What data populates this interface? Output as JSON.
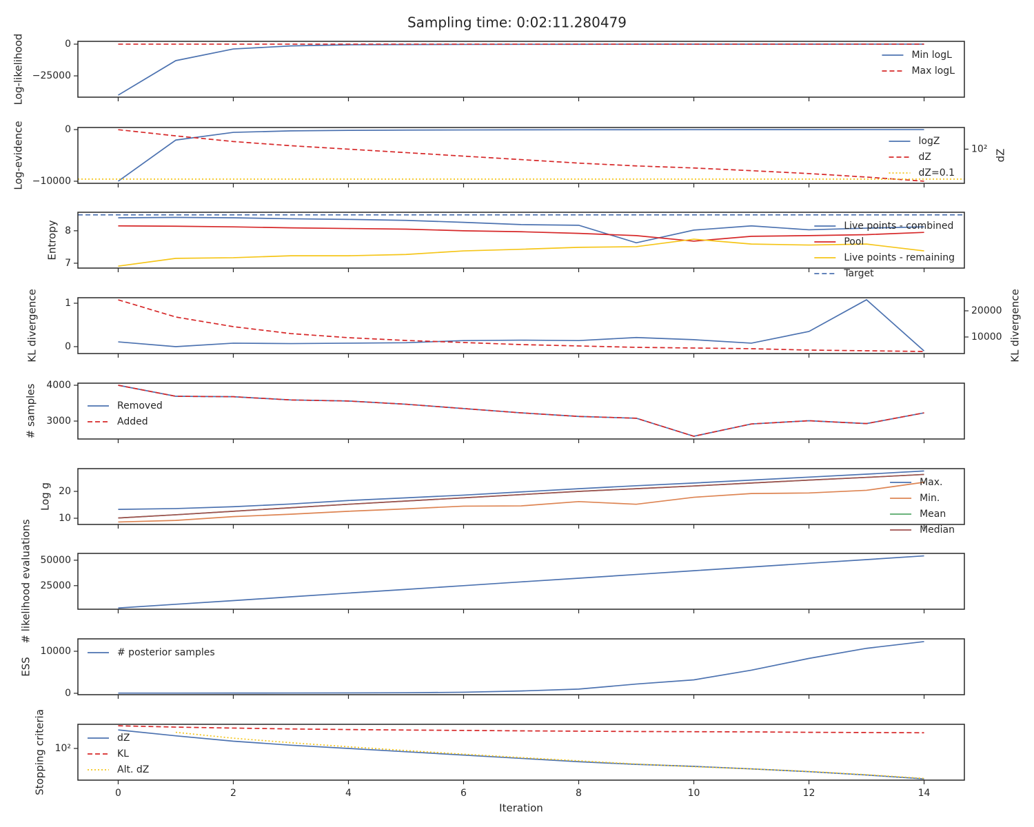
{
  "title": "Sampling time: 0:02:11.280479",
  "chart_data": [
    {
      "type": "line",
      "ylabel": "Log-likelihood",
      "x": [
        0,
        1,
        2,
        3,
        4,
        5,
        6,
        7,
        8,
        9,
        10,
        11,
        12,
        13,
        14
      ],
      "ylim": [
        -41800,
        2200
      ],
      "yticks": [
        {
          "value": -25000,
          "label": "−25000"
        },
        0
      ],
      "legend": "upper right",
      "series": [
        {
          "name": "Min logL",
          "color": "#4c72b0",
          "style": "solid",
          "values": [
            -40200,
            -13000,
            -3800,
            -1400,
            -500,
            -300,
            -200,
            -150,
            -100,
            -60,
            -40,
            -30,
            -20,
            -10,
            -5
          ]
        },
        {
          "name": "Max logL",
          "color": "#d62728",
          "style": "dashed",
          "values": [
            0,
            0,
            0,
            0,
            0,
            0,
            0,
            0,
            0,
            0,
            0,
            0,
            0,
            0,
            0
          ]
        }
      ]
    },
    {
      "type": "line",
      "ylabel": "Log-evidence",
      "y2label": "dZ",
      "x": [
        0,
        1,
        2,
        3,
        4,
        5,
        6,
        7,
        8,
        9,
        10,
        11,
        12,
        13,
        14
      ],
      "ylim": [
        -10405,
        405
      ],
      "yticks": [
        {
          "value": -10000,
          "label": "−10000"
        },
        0
      ],
      "y2log": true,
      "y2lim": [
        0.038,
        14700
      ],
      "y2ticks": [
        {
          "value": 100,
          "label": "10²"
        }
      ],
      "legend": "upper right",
      "series": [
        {
          "name": "logZ",
          "color": "#4c72b0",
          "style": "solid",
          "values": [
            -10000,
            -2030,
            -540,
            -250,
            -150,
            -100,
            -70,
            -50,
            -35,
            -25,
            -18,
            -12,
            -8,
            -5,
            -3
          ]
        },
        {
          "name": "dZ",
          "color": "#d62728",
          "style": "dashed",
          "axis": "y2",
          "values": [
            8900,
            2130,
            580,
            220,
            100,
            45,
            20,
            9,
            4,
            2.1,
            1.3,
            0.7,
            0.36,
            0.16,
            0.062
          ]
        }
      ],
      "hlines": [
        {
          "name": "dZ=0.1",
          "value": 0.1,
          "axis": "y2",
          "color": "#f5c518",
          "style": "dotted"
        }
      ]
    },
    {
      "type": "line",
      "ylabel": "Entropy",
      "x": [
        0,
        1,
        2,
        3,
        4,
        5,
        6,
        7,
        8,
        9,
        10,
        11,
        12,
        13,
        14
      ],
      "ylim": [
        6.85,
        8.57
      ],
      "yticks": [
        7,
        8
      ],
      "legend": "upper right",
      "series": [
        {
          "name": "Live points - combined",
          "color": "#4c72b0",
          "style": "solid",
          "values": [
            8.4,
            8.41,
            8.4,
            8.37,
            8.35,
            8.32,
            8.26,
            8.19,
            8.17,
            7.63,
            8.02,
            8.15,
            8.03,
            8.08,
            8.12
          ]
        },
        {
          "name": "Pool",
          "color": "#d62728",
          "style": "solid",
          "values": [
            8.15,
            8.14,
            8.12,
            8.09,
            8.07,
            8.05,
            8.0,
            7.97,
            7.92,
            7.85,
            7.68,
            7.83,
            7.85,
            7.88,
            7.95
          ]
        },
        {
          "name": "Live points - remaining",
          "color": "#f5c518",
          "style": "solid",
          "values": [
            6.91,
            7.15,
            7.17,
            7.23,
            7.23,
            7.27,
            7.38,
            7.43,
            7.49,
            7.51,
            7.74,
            7.59,
            7.56,
            7.59,
            7.38
          ]
        }
      ],
      "hlines": [
        {
          "name": "Target",
          "value": 8.49,
          "color": "#4c72b0",
          "style": "dashed"
        }
      ]
    },
    {
      "type": "line",
      "ylabel": "KL divergence",
      "y2label": "KL divergence",
      "x": [
        0,
        1,
        2,
        3,
        4,
        5,
        6,
        7,
        8,
        9,
        10,
        11,
        12,
        13,
        14
      ],
      "ylim": [
        -0.159,
        1.127
      ],
      "yticks": [
        0,
        1
      ],
      "y2lim": [
        3680,
        25000
      ],
      "y2ticks": [
        10000,
        20000
      ],
      "series": [
        {
          "color": "#4c72b0",
          "style": "solid",
          "values": [
            0.11,
            0,
            0.08,
            0.07,
            0.08,
            0.09,
            0.14,
            0.15,
            0.14,
            0.21,
            0.16,
            0.08,
            0.35,
            1.08,
            -0.1
          ]
        },
        {
          "color": "#d62728",
          "style": "dashed",
          "axis": "y2",
          "values": [
            24200,
            17630,
            13950,
            11300,
            9740,
            8680,
            7900,
            7100,
            6580,
            6050,
            5790,
            5530,
            5000,
            4740,
            4470
          ]
        }
      ]
    },
    {
      "type": "line",
      "ylabel": "# samples",
      "x": [
        0,
        1,
        2,
        3,
        4,
        5,
        6,
        7,
        8,
        9,
        10,
        11,
        12,
        13,
        14
      ],
      "ylim": [
        2500,
        4058
      ],
      "yticks": [
        3000,
        4000
      ],
      "legend": "center left",
      "series": [
        {
          "name": "Removed",
          "color": "#4c72b0",
          "style": "solid",
          "values": [
            4000,
            3692,
            3680,
            3590,
            3560,
            3470,
            3350,
            3230,
            3130,
            3080,
            2577,
            2920,
            3010,
            2930,
            3230
          ]
        },
        {
          "name": "Added",
          "color": "#d62728",
          "style": "dashed",
          "values": [
            4000,
            3692,
            3680,
            3590,
            3560,
            3470,
            3350,
            3230,
            3130,
            3080,
            2577,
            2920,
            3010,
            2930,
            3230
          ]
        }
      ]
    },
    {
      "type": "line",
      "ylabel": "Log g",
      "x": [
        0,
        1,
        2,
        3,
        4,
        5,
        6,
        7,
        8,
        9,
        10,
        11,
        12,
        13,
        14
      ],
      "ylim": [
        7.69,
        28.46
      ],
      "yticks": [
        10,
        20
      ],
      "legend": "upper right",
      "series": [
        {
          "name": "Max.",
          "color": "#4c72b0",
          "style": "solid",
          "values": [
            13.3,
            13.6,
            14.3,
            15.3,
            16.6,
            17.6,
            18.6,
            19.8,
            21.0,
            22.1,
            23.1,
            24.2,
            25.3,
            26.4,
            27.6
          ]
        },
        {
          "name": "Min.",
          "color": "#dd8452",
          "style": "solid",
          "values": [
            8.6,
            9.2,
            10.6,
            11.5,
            12.6,
            13.5,
            14.5,
            14.6,
            16.2,
            15.2,
            17.8,
            19.2,
            19.4,
            20.4,
            23.4
          ]
        },
        {
          "name": "Mean",
          "color": "#55a868",
          "style": "solid",
          "values": [
            10.1,
            11.3,
            12.6,
            13.9,
            15.2,
            16.4,
            17.6,
            18.8,
            20.0,
            21.0,
            22.0,
            23.1,
            24.2,
            25.2,
            26.3
          ]
        },
        {
          "name": "Median",
          "color": "#a0504f",
          "style": "solid",
          "values": [
            10.1,
            11.3,
            12.6,
            13.9,
            15.2,
            16.4,
            17.6,
            18.8,
            20.0,
            21.0,
            22.0,
            23.1,
            24.2,
            25.2,
            26.3
          ]
        }
      ]
    },
    {
      "type": "line",
      "ylabel": "# likelihood evaluations",
      "x": [
        0,
        1,
        2,
        3,
        4,
        5,
        6,
        7,
        8,
        9,
        10,
        11,
        12,
        13,
        14
      ],
      "ylim": [
        1830,
        56700
      ],
      "yticks": [
        25000,
        50000
      ],
      "series": [
        {
          "color": "#4c72b0",
          "style": "solid",
          "values": [
            3000,
            6700,
            10300,
            14000,
            17700,
            21300,
            25000,
            28700,
            32300,
            36000,
            39700,
            43300,
            47000,
            50600,
            54300
          ]
        }
      ]
    },
    {
      "type": "line",
      "ylabel": "ESS",
      "x": [
        0,
        1,
        2,
        3,
        4,
        5,
        6,
        7,
        8,
        9,
        10,
        11,
        12,
        13,
        14
      ],
      "ylim": [
        -330,
        12950
      ],
      "yticks": [
        0,
        10000
      ],
      "legend": "upper left",
      "series": [
        {
          "name": "# posterior samples",
          "color": "#4c72b0",
          "style": "solid",
          "values": [
            50,
            50,
            60,
            70,
            90,
            130,
            250,
            550,
            1000,
            2200,
            3200,
            5500,
            8300,
            10700,
            12300
          ]
        }
      ]
    },
    {
      "type": "line",
      "ylabel": "Stopping criteria",
      "xlabel": "Iteration",
      "x": [
        0,
        1,
        2,
        3,
        4,
        5,
        6,
        7,
        8,
        9,
        10,
        11,
        12,
        13,
        14
      ],
      "xlim": [
        -0.7,
        14.7
      ],
      "xticks": [
        0,
        2,
        4,
        6,
        8,
        10,
        12,
        14
      ],
      "ylog": true,
      "ylim": [
        0.046,
        34700
      ],
      "yticks": [
        {
          "value": 100,
          "label": "10²"
        }
      ],
      "legend": "upper left",
      "series": [
        {
          "name": "dZ",
          "color": "#4c72b0",
          "style": "solid",
          "values": [
            8900,
            2130,
            580,
            220,
            100,
            45,
            20,
            9,
            4,
            2.1,
            1.3,
            0.7,
            0.36,
            0.16,
            0.062
          ]
        },
        {
          "name": "KL",
          "color": "#d62728",
          "style": "dashed",
          "values": [
            24200,
            17630,
            13950,
            11300,
            9740,
            8680,
            7900,
            7100,
            6580,
            6050,
            5790,
            5530,
            5000,
            4740,
            4470
          ]
        },
        {
          "name": "Alt. dZ",
          "color": "#f5c518",
          "style": "dotted",
          "values": [
            null,
            5000,
            1200,
            400,
            150,
            60,
            25,
            11,
            5,
            2.3,
            1.2,
            0.7,
            0.38,
            0.17,
            0.07
          ]
        }
      ]
    }
  ]
}
